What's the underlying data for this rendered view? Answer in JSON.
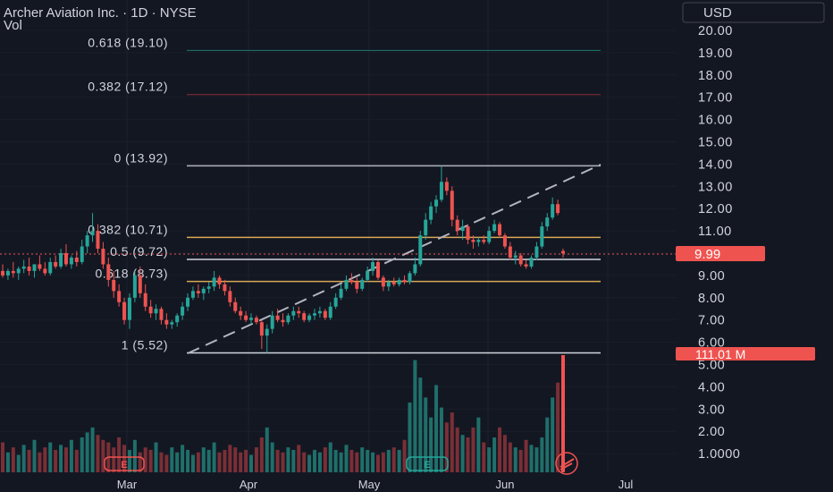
{
  "header": {
    "title": "Archer Aviation Inc. · 1D · NYSE",
    "vol_label": "Vol",
    "currency": "USD"
  },
  "colors": {
    "up": "#26a69a",
    "down": "#ef5350",
    "vol_up": "#1f6f6a",
    "vol_down": "#7a2f36",
    "background": "#131722",
    "text": "#d1d4dc",
    "price_tag": "#ef5350"
  },
  "chart_data": {
    "type": "candlestick",
    "title": "Archer Aviation Inc. · 1D · NYSE",
    "ylim": [
      0.5,
      21
    ],
    "yticks": [
      "20.00",
      "19.00",
      "18.00",
      "17.00",
      "16.00",
      "15.00",
      "14.00",
      "13.00",
      "12.00",
      "11.00",
      "10.00",
      "9.00",
      "8.00",
      "7.00",
      "6.00",
      "5.00",
      "4.00",
      "3.00",
      "2.00",
      "1.0000"
    ],
    "xticks": [
      "Mar",
      "Apr",
      "May",
      "Jun",
      "Jul"
    ],
    "last_price": "9.99",
    "last_volume": "111.01 M",
    "fib_levels": [
      {
        "label": "0.618 (19.10)",
        "price": 19.1,
        "color": "#1f7a6e"
      },
      {
        "label": "0.382 (17.12)",
        "price": 17.12,
        "color": "#8b2e37"
      },
      {
        "label": "0 (13.92)",
        "price": 13.92,
        "color": "#b2b5be"
      },
      {
        "label": "0.382 (10.71)",
        "price": 10.71,
        "color": "#d9a857"
      },
      {
        "label": "0.5 (9.72)",
        "price": 9.72,
        "color": "#d1d4dc"
      },
      {
        "label": "0.618 (8.73)",
        "price": 8.73,
        "color": "#d9a857"
      },
      {
        "label": "1 (5.52)",
        "price": 5.52,
        "color": "#d1d4dc"
      }
    ],
    "candles": [
      {
        "o": 9.2,
        "h": 9.5,
        "l": 8.9,
        "c": 9.0
      },
      {
        "o": 9.0,
        "h": 9.3,
        "l": 8.8,
        "c": 9.2
      },
      {
        "o": 9.2,
        "h": 9.6,
        "l": 8.9,
        "c": 9.1
      },
      {
        "o": 9.1,
        "h": 9.4,
        "l": 8.8,
        "c": 9.3
      },
      {
        "o": 9.3,
        "h": 9.7,
        "l": 9.1,
        "c": 9.4
      },
      {
        "o": 9.4,
        "h": 9.8,
        "l": 9.0,
        "c": 9.2
      },
      {
        "o": 9.2,
        "h": 9.5,
        "l": 8.9,
        "c": 9.5
      },
      {
        "o": 9.5,
        "h": 9.9,
        "l": 9.2,
        "c": 9.3
      },
      {
        "o": 9.3,
        "h": 9.6,
        "l": 9.0,
        "c": 9.1
      },
      {
        "o": 9.1,
        "h": 9.8,
        "l": 9.0,
        "c": 9.6
      },
      {
        "o": 9.6,
        "h": 9.9,
        "l": 9.3,
        "c": 9.4
      },
      {
        "o": 9.4,
        "h": 10.2,
        "l": 9.3,
        "c": 10.0
      },
      {
        "o": 10.0,
        "h": 10.4,
        "l": 9.4,
        "c": 9.5
      },
      {
        "o": 9.5,
        "h": 9.9,
        "l": 9.3,
        "c": 9.8
      },
      {
        "o": 9.8,
        "h": 10.1,
        "l": 9.4,
        "c": 9.6
      },
      {
        "o": 9.6,
        "h": 10.6,
        "l": 9.5,
        "c": 10.3
      },
      {
        "o": 10.3,
        "h": 11.0,
        "l": 10.0,
        "c": 10.8
      },
      {
        "o": 10.8,
        "h": 11.8,
        "l": 10.5,
        "c": 11.0
      },
      {
        "o": 11.0,
        "h": 11.3,
        "l": 10.0,
        "c": 10.2
      },
      {
        "o": 10.2,
        "h": 10.5,
        "l": 9.3,
        "c": 9.5
      },
      {
        "o": 9.5,
        "h": 9.8,
        "l": 8.5,
        "c": 8.8
      },
      {
        "o": 8.8,
        "h": 9.2,
        "l": 8.0,
        "c": 8.3
      },
      {
        "o": 8.3,
        "h": 8.6,
        "l": 7.6,
        "c": 7.8
      },
      {
        "o": 7.8,
        "h": 8.0,
        "l": 6.8,
        "c": 7.0
      },
      {
        "o": 7.0,
        "h": 8.2,
        "l": 6.6,
        "c": 8.0
      },
      {
        "o": 8.0,
        "h": 9.2,
        "l": 7.8,
        "c": 9.0
      },
      {
        "o": 9.0,
        "h": 9.4,
        "l": 8.0,
        "c": 8.2
      },
      {
        "o": 8.2,
        "h": 8.6,
        "l": 7.4,
        "c": 7.6
      },
      {
        "o": 7.6,
        "h": 7.9,
        "l": 7.1,
        "c": 7.3
      },
      {
        "o": 7.3,
        "h": 7.7,
        "l": 7.0,
        "c": 7.5
      },
      {
        "o": 7.5,
        "h": 7.6,
        "l": 6.8,
        "c": 7.0
      },
      {
        "o": 7.0,
        "h": 7.3,
        "l": 6.6,
        "c": 6.8
      },
      {
        "o": 6.8,
        "h": 7.0,
        "l": 6.6,
        "c": 6.9
      },
      {
        "o": 6.9,
        "h": 7.3,
        "l": 6.7,
        "c": 7.2
      },
      {
        "o": 7.2,
        "h": 7.8,
        "l": 7.0,
        "c": 7.6
      },
      {
        "o": 7.6,
        "h": 8.2,
        "l": 7.4,
        "c": 8.0
      },
      {
        "o": 8.0,
        "h": 8.5,
        "l": 7.9,
        "c": 8.3
      },
      {
        "o": 8.3,
        "h": 8.6,
        "l": 8.0,
        "c": 8.2
      },
      {
        "o": 8.2,
        "h": 8.5,
        "l": 7.9,
        "c": 8.4
      },
      {
        "o": 8.4,
        "h": 8.7,
        "l": 8.2,
        "c": 8.5
      },
      {
        "o": 8.5,
        "h": 9.2,
        "l": 8.3,
        "c": 8.9
      },
      {
        "o": 8.9,
        "h": 9.0,
        "l": 8.4,
        "c": 8.6
      },
      {
        "o": 8.6,
        "h": 8.8,
        "l": 8.1,
        "c": 8.3
      },
      {
        "o": 8.3,
        "h": 8.5,
        "l": 7.6,
        "c": 7.8
      },
      {
        "o": 7.8,
        "h": 8.0,
        "l": 7.3,
        "c": 7.4
      },
      {
        "o": 7.4,
        "h": 7.6,
        "l": 7.0,
        "c": 7.2
      },
      {
        "o": 7.2,
        "h": 7.4,
        "l": 6.9,
        "c": 7.0
      },
      {
        "o": 7.0,
        "h": 7.3,
        "l": 6.8,
        "c": 7.1
      },
      {
        "o": 7.1,
        "h": 7.2,
        "l": 6.8,
        "c": 6.9
      },
      {
        "o": 6.9,
        "h": 7.0,
        "l": 5.7,
        "c": 6.3
      },
      {
        "o": 6.3,
        "h": 6.8,
        "l": 5.52,
        "c": 6.6
      },
      {
        "o": 6.6,
        "h": 7.4,
        "l": 6.4,
        "c": 7.2
      },
      {
        "o": 7.2,
        "h": 7.5,
        "l": 6.9,
        "c": 7.0
      },
      {
        "o": 7.0,
        "h": 7.3,
        "l": 6.7,
        "c": 6.9
      },
      {
        "o": 6.9,
        "h": 7.3,
        "l": 6.8,
        "c": 7.2
      },
      {
        "o": 7.2,
        "h": 7.6,
        "l": 7.0,
        "c": 7.4
      },
      {
        "o": 7.4,
        "h": 7.6,
        "l": 7.1,
        "c": 7.3
      },
      {
        "o": 7.3,
        "h": 7.4,
        "l": 6.9,
        "c": 7.0
      },
      {
        "o": 7.0,
        "h": 7.3,
        "l": 6.9,
        "c": 7.2
      },
      {
        "o": 7.2,
        "h": 7.5,
        "l": 7.0,
        "c": 7.3
      },
      {
        "o": 7.3,
        "h": 7.6,
        "l": 7.1,
        "c": 7.4
      },
      {
        "o": 7.4,
        "h": 7.5,
        "l": 7.0,
        "c": 7.1
      },
      {
        "o": 7.1,
        "h": 7.8,
        "l": 7.0,
        "c": 7.6
      },
      {
        "o": 7.6,
        "h": 8.2,
        "l": 7.5,
        "c": 8.0
      },
      {
        "o": 8.0,
        "h": 8.6,
        "l": 7.9,
        "c": 8.4
      },
      {
        "o": 8.4,
        "h": 9.0,
        "l": 8.3,
        "c": 8.8
      },
      {
        "o": 8.8,
        "h": 9.1,
        "l": 8.6,
        "c": 8.7
      },
      {
        "o": 8.7,
        "h": 8.9,
        "l": 8.2,
        "c": 8.4
      },
      {
        "o": 8.4,
        "h": 8.9,
        "l": 8.3,
        "c": 8.8
      },
      {
        "o": 8.8,
        "h": 9.4,
        "l": 8.7,
        "c": 9.2
      },
      {
        "o": 9.2,
        "h": 9.8,
        "l": 9.0,
        "c": 9.6
      },
      {
        "o": 9.6,
        "h": 9.7,
        "l": 8.8,
        "c": 8.9
      },
      {
        "o": 8.9,
        "h": 9.0,
        "l": 8.3,
        "c": 8.5
      },
      {
        "o": 8.5,
        "h": 8.8,
        "l": 8.3,
        "c": 8.7
      },
      {
        "o": 8.7,
        "h": 8.9,
        "l": 8.5,
        "c": 8.6
      },
      {
        "o": 8.6,
        "h": 8.9,
        "l": 8.5,
        "c": 8.8
      },
      {
        "o": 8.8,
        "h": 9.0,
        "l": 8.6,
        "c": 8.7
      },
      {
        "o": 8.7,
        "h": 9.2,
        "l": 8.6,
        "c": 9.1
      },
      {
        "o": 9.1,
        "h": 9.8,
        "l": 9.0,
        "c": 9.5
      },
      {
        "o": 9.5,
        "h": 11.0,
        "l": 9.4,
        "c": 10.8
      },
      {
        "o": 10.8,
        "h": 11.8,
        "l": 10.6,
        "c": 11.5
      },
      {
        "o": 11.5,
        "h": 12.3,
        "l": 11.3,
        "c": 12.1
      },
      {
        "o": 12.1,
        "h": 12.6,
        "l": 11.8,
        "c": 12.4
      },
      {
        "o": 12.4,
        "h": 13.92,
        "l": 12.3,
        "c": 13.2
      },
      {
        "o": 13.2,
        "h": 13.4,
        "l": 12.6,
        "c": 12.8
      },
      {
        "o": 12.8,
        "h": 13.0,
        "l": 11.2,
        "c": 11.5
      },
      {
        "o": 11.5,
        "h": 11.7,
        "l": 10.8,
        "c": 11.0
      },
      {
        "o": 11.0,
        "h": 11.5,
        "l": 10.6,
        "c": 11.2
      },
      {
        "o": 11.2,
        "h": 11.3,
        "l": 10.4,
        "c": 10.6
      },
      {
        "o": 10.6,
        "h": 10.8,
        "l": 10.2,
        "c": 10.5
      },
      {
        "o": 10.5,
        "h": 10.7,
        "l": 10.3,
        "c": 10.6
      },
      {
        "o": 10.6,
        "h": 10.8,
        "l": 10.4,
        "c": 10.5
      },
      {
        "o": 10.5,
        "h": 11.2,
        "l": 10.4,
        "c": 11.0
      },
      {
        "o": 11.0,
        "h": 11.5,
        "l": 10.9,
        "c": 11.3
      },
      {
        "o": 11.3,
        "h": 11.4,
        "l": 10.7,
        "c": 10.8
      },
      {
        "o": 10.8,
        "h": 10.9,
        "l": 10.2,
        "c": 10.3
      },
      {
        "o": 10.3,
        "h": 10.5,
        "l": 9.7,
        "c": 9.8
      },
      {
        "o": 9.8,
        "h": 10.1,
        "l": 9.5,
        "c": 9.9
      },
      {
        "o": 9.9,
        "h": 10.0,
        "l": 9.4,
        "c": 9.5
      },
      {
        "o": 9.5,
        "h": 9.7,
        "l": 9.3,
        "c": 9.4
      },
      {
        "o": 9.4,
        "h": 9.9,
        "l": 9.3,
        "c": 9.8
      },
      {
        "o": 9.8,
        "h": 10.5,
        "l": 9.7,
        "c": 10.3
      },
      {
        "o": 10.3,
        "h": 11.4,
        "l": 10.2,
        "c": 11.2
      },
      {
        "o": 11.2,
        "h": 11.8,
        "l": 11.0,
        "c": 11.6
      },
      {
        "o": 11.6,
        "h": 12.5,
        "l": 11.5,
        "c": 12.2
      },
      {
        "o": 12.2,
        "h": 12.4,
        "l": 11.7,
        "c": 11.8
      },
      {
        "o": 10.1,
        "h": 10.2,
        "l": 9.8,
        "c": 9.99
      }
    ],
    "volumes": [
      12,
      8,
      10,
      7,
      11,
      9,
      13,
      8,
      10,
      12,
      9,
      11,
      10,
      13,
      9,
      14,
      16,
      18,
      15,
      13,
      12,
      10,
      14,
      11,
      9,
      13,
      8,
      10,
      9,
      12,
      8,
      7,
      10,
      8,
      11,
      9,
      7,
      8,
      10,
      9,
      12,
      8,
      9,
      11,
      10,
      8,
      9,
      7,
      10,
      14,
      18,
      12,
      9,
      8,
      10,
      9,
      11,
      8,
      7,
      9,
      8,
      10,
      12,
      9,
      8,
      11,
      9,
      8,
      10,
      9,
      8,
      7,
      8,
      9,
      10,
      9,
      13,
      28,
      45,
      38,
      30,
      22,
      35,
      26,
      20,
      24,
      18,
      15,
      14,
      18,
      22,
      12,
      10,
      14,
      18,
      15,
      12,
      10,
      9,
      13,
      11,
      10,
      14,
      22,
      30,
      36,
      47
    ]
  }
}
